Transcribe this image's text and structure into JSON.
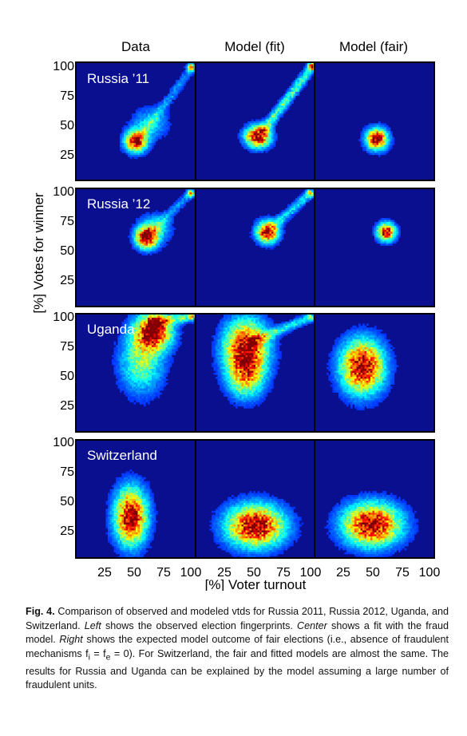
{
  "figure": {
    "column_titles": [
      "Data",
      "Model (fit)",
      "Model (fair)"
    ],
    "rows": [
      {
        "label": "Russia ’11"
      },
      {
        "label": "Russia ’12"
      },
      {
        "label": "Uganda"
      },
      {
        "label": "Switzerland"
      }
    ],
    "y_axis_label": "[%] Votes for winner",
    "x_axis_label": "[%] Voter turnout",
    "y_ticks": [
      [
        "100",
        "75",
        "50",
        "25"
      ],
      [
        "100",
        "75",
        "50",
        "25"
      ],
      [
        "100",
        "75",
        "50",
        "25"
      ],
      [
        "100",
        "75",
        "50",
        "25"
      ]
    ],
    "x_ticks": [
      [
        "25",
        "50",
        "75",
        "100"
      ],
      [
        "25",
        "50",
        "75",
        "100"
      ],
      [
        "25",
        "50",
        "75",
        "100"
      ]
    ],
    "colors": {
      "background": "#0a0f8f",
      "frame": "#000000"
    }
  },
  "caption": {
    "label": "Fig. 4.",
    "p1": "Comparison of observed and modeled vtds for Russia 2011, Russia 2012, Uganda, and Switzerland.",
    "left_word": "Left",
    "p2": "shows the observed election fingerprints.",
    "center_word": "Center",
    "p3": "shows a fit with the fraud model.",
    "right_word": "Right",
    "p4": "shows the expected model outcome of fair elections (i.e., absence of fraudulent mechanisms f",
    "sub_i": "i",
    "p5": "= f",
    "sub_e": "e",
    "p6": "= 0). For Switzerland, the fair and fitted models are almost the same. The results for Russia and Uganda can be explained by the model assuming a large number of fraudulent units."
  },
  "chart_data": {
    "type": "heatmap",
    "xlabel": "[%] Voter turnout",
    "ylabel": "[%] Votes for winner",
    "xlim": [
      0,
      100
    ],
    "ylim": [
      0,
      100
    ],
    "columns": [
      "Data",
      "Model (fit)",
      "Model (fair)"
    ],
    "panels": [
      {
        "row": "Russia ’11",
        "column": "Data",
        "blobs": [
          {
            "x": 50,
            "y": 33,
            "sx": 6,
            "sy": 6,
            "w": 1.0
          },
          {
            "x": 62,
            "y": 48,
            "sx": 10,
            "sy": 9,
            "w": 0.25
          }
        ],
        "streak": {
          "x1": 55,
          "y1": 38,
          "x2": 97,
          "y2": 95,
          "w": 0.2
        },
        "corner": {
          "x": 96,
          "y": 96,
          "w": 0.8
        }
      },
      {
        "row": "Russia ’11",
        "column": "Model (fit)",
        "blobs": [
          {
            "x": 52,
            "y": 37,
            "sx": 7,
            "sy": 6,
            "w": 1.0
          }
        ],
        "streak": {
          "x1": 55,
          "y1": 40,
          "x2": 98,
          "y2": 97,
          "w": 0.45
        },
        "corner": {
          "x": 97,
          "y": 97,
          "w": 0.85
        }
      },
      {
        "row": "Russia ’11",
        "column": "Model (fair)",
        "blobs": [
          {
            "x": 52,
            "y": 35,
            "sx": 6,
            "sy": 6,
            "w": 1.0
          }
        ]
      },
      {
        "row": "Russia ’12",
        "column": "Data",
        "blobs": [
          {
            "x": 59,
            "y": 58,
            "sx": 6,
            "sy": 6,
            "w": 1.0
          },
          {
            "x": 66,
            "y": 66,
            "sx": 9,
            "sy": 8,
            "w": 0.3
          }
        ],
        "streak": {
          "x1": 62,
          "y1": 62,
          "x2": 97,
          "y2": 97,
          "w": 0.2
        },
        "corner": {
          "x": 96,
          "y": 96,
          "w": 0.6
        }
      },
      {
        "row": "Russia ’12",
        "column": "Model (fit)",
        "blobs": [
          {
            "x": 60,
            "y": 63,
            "sx": 6,
            "sy": 6,
            "w": 1.0
          }
        ],
        "streak": {
          "x1": 64,
          "y1": 67,
          "x2": 97,
          "y2": 97,
          "w": 0.3
        },
        "corner": {
          "x": 96,
          "y": 96,
          "w": 0.5
        }
      },
      {
        "row": "Russia ’12",
        "column": "Model (fair)",
        "blobs": [
          {
            "x": 60,
            "y": 63,
            "sx": 5,
            "sy": 5,
            "w": 1.0
          }
        ]
      },
      {
        "row": "Uganda",
        "column": "Data",
        "blobs": [
          {
            "x": 65,
            "y": 85,
            "sx": 10,
            "sy": 10,
            "w": 1.0
          },
          {
            "x": 55,
            "y": 60,
            "sx": 12,
            "sy": 18,
            "w": 0.45
          }
        ],
        "streak": {
          "x1": 60,
          "y1": 92,
          "x2": 98,
          "y2": 98,
          "w": 0.5
        },
        "corner": {
          "x": 97,
          "y": 98,
          "w": 0.4
        }
      },
      {
        "row": "Uganda",
        "column": "Model (fit)",
        "blobs": [
          {
            "x": 42,
            "y": 70,
            "sx": 12,
            "sy": 16,
            "w": 1.0
          },
          {
            "x": 42,
            "y": 45,
            "sx": 10,
            "sy": 12,
            "w": 0.45
          }
        ],
        "streak": {
          "x1": 45,
          "y1": 75,
          "x2": 98,
          "y2": 98,
          "w": 0.35
        },
        "corner": {
          "x": 96,
          "y": 98,
          "w": 0.3
        }
      },
      {
        "row": "Uganda",
        "column": "Model (fair)",
        "blobs": [
          {
            "x": 40,
            "y": 55,
            "sx": 12,
            "sy": 15,
            "w": 1.0
          }
        ]
      },
      {
        "row": "Switzerland",
        "column": "Data",
        "blobs": [
          {
            "x": 46,
            "y": 35,
            "sx": 9,
            "sy": 16,
            "w": 1.0
          }
        ]
      },
      {
        "row": "Switzerland",
        "column": "Model (fit)",
        "blobs": [
          {
            "x": 50,
            "y": 27,
            "sx": 16,
            "sy": 12,
            "w": 1.0
          }
        ]
      },
      {
        "row": "Switzerland",
        "column": "Model (fair)",
        "blobs": [
          {
            "x": 48,
            "y": 28,
            "sx": 16,
            "sy": 12,
            "w": 1.0
          }
        ]
      }
    ]
  }
}
